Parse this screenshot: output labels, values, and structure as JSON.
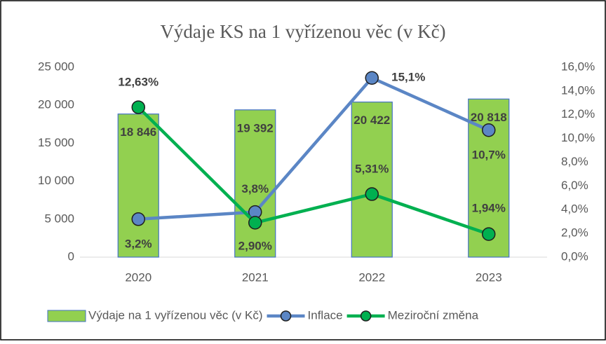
{
  "chart_data": {
    "type": "bar-line",
    "title": "Výdaje KS na 1 vyřízenou věc (v Kč)",
    "categories": [
      "2020",
      "2021",
      "2022",
      "2023"
    ],
    "series": [
      {
        "name": "Výdaje na 1 vyřízenou věc (v Kč)",
        "type": "bar",
        "color": "#92d050",
        "values": [
          18846,
          19392,
          20422,
          20818
        ],
        "value_labels": [
          "18 846",
          "19 392",
          "20 422",
          "20 818"
        ]
      },
      {
        "name": "Inflace",
        "type": "line",
        "axis": "y2",
        "color": "#5b86c5",
        "values": [
          3.2,
          3.8,
          15.1,
          10.7
        ],
        "value_labels": [
          "3,2%",
          "3,8%",
          "15,1%",
          "10,7%"
        ]
      },
      {
        "name": "Meziroční změna",
        "type": "line",
        "axis": "y2",
        "color": "#00b050",
        "values": [
          12.63,
          2.9,
          5.31,
          1.94
        ],
        "value_labels": [
          "12,63%",
          "2,90%",
          "5,31%",
          "1,94%"
        ]
      }
    ],
    "ylim": [
      0,
      25000
    ],
    "yticks": [
      0,
      {
        "value": 5000,
        "label": "5 000"
      },
      {
        "value": 10000,
        "label": "10 000"
      },
      {
        "value": 15000,
        "label": "15 000"
      },
      {
        "value": 20000,
        "label": "20 000"
      },
      {
        "value": 25000,
        "label": "25 000"
      }
    ],
    "y2lim": [
      0,
      16
    ],
    "y2ticks": [
      {
        "value": 0,
        "label": "0,0%"
      },
      {
        "value": 2,
        "label": "2,0%"
      },
      {
        "value": 4,
        "label": "4,0%"
      },
      {
        "value": 6,
        "label": "6,0%"
      },
      {
        "value": 8,
        "label": "8,0%"
      },
      {
        "value": 10,
        "label": "10,0%"
      },
      {
        "value": 12,
        "label": "12,0%"
      },
      {
        "value": 14,
        "label": "14,0%"
      },
      {
        "value": 16,
        "label": "16,0%"
      }
    ],
    "grid": false,
    "legend": "bottom"
  }
}
